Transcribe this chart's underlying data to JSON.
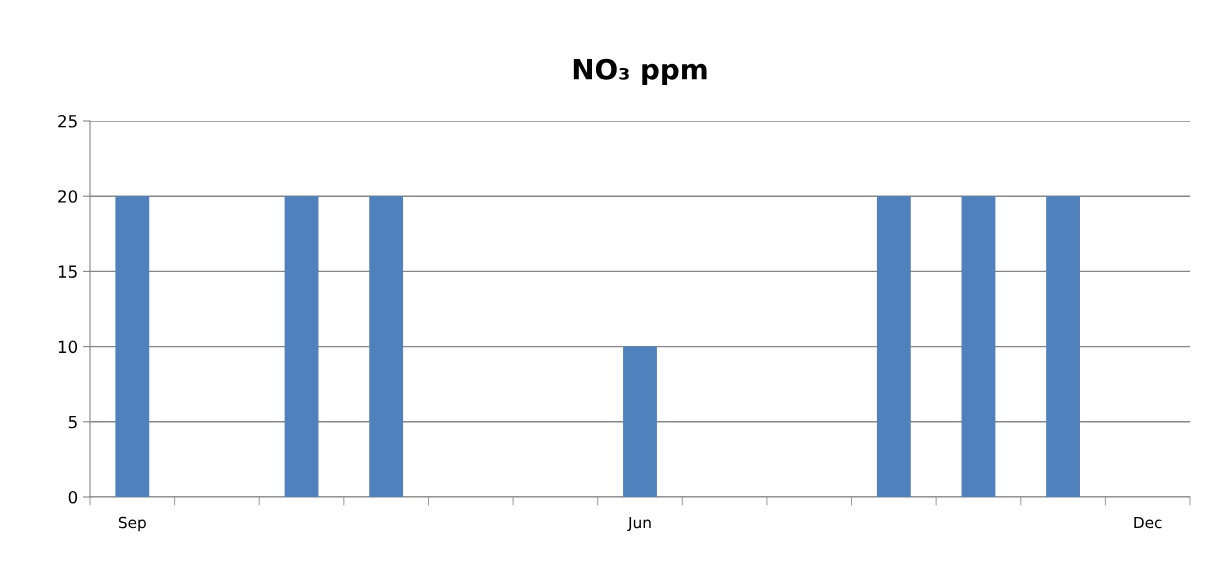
{
  "chart_data": {
    "type": "bar",
    "title": "NO₃ ppm",
    "categories": [
      "Sep",
      null,
      null,
      null,
      null,
      null,
      "Jun",
      null,
      null,
      null,
      null,
      null,
      "Dec"
    ],
    "series": [
      {
        "color": "#4f81bd",
        "values": [
          20,
          null,
          20,
          20,
          null,
          null,
          10,
          null,
          null,
          20,
          20,
          20,
          null
        ]
      }
    ],
    "ylim": [
      0,
      25
    ],
    "yticks": [
      0,
      5,
      10,
      15,
      20,
      25
    ],
    "grid": "y",
    "legend": false
  }
}
